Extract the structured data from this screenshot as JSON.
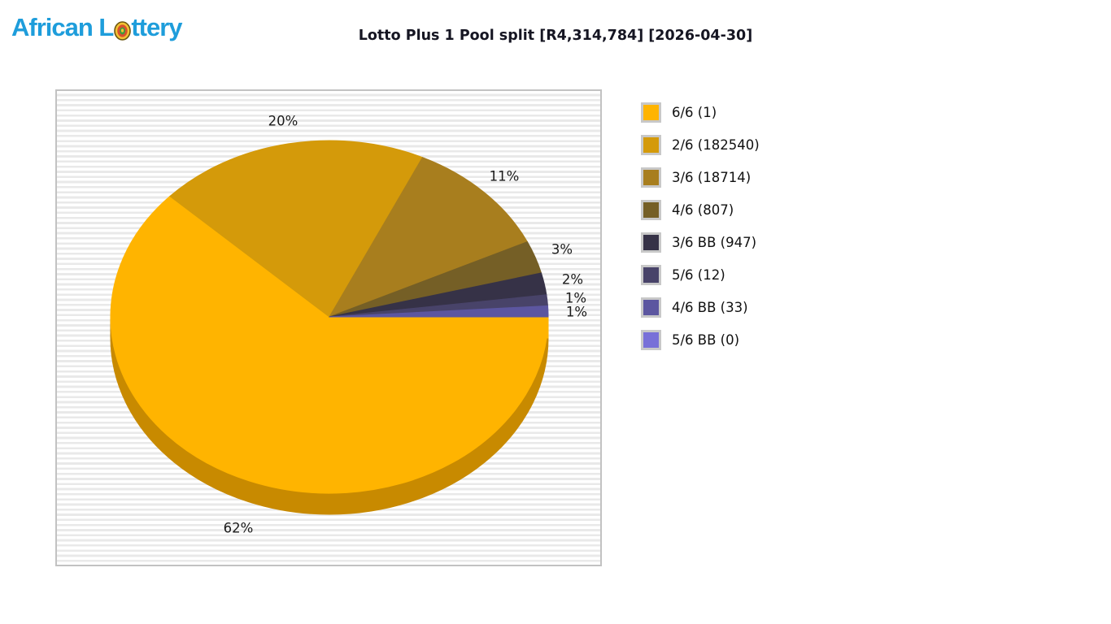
{
  "logo": {
    "text": "African Lottery",
    "text_before_ball": "African L",
    "text_after_ball": "ttery",
    "color": "#1E9DDB",
    "ball_icon": "lottery-ball-icon"
  },
  "header": {
    "title": "Lotto Plus 1 Pool split [R4,314,784] [2026-04-30]"
  },
  "chart_data": {
    "type": "pie",
    "style": "3d",
    "title": "Lotto Plus 1 Pool split [R4,314,784] [2026-04-30]",
    "pool_amount": "R4,314,784",
    "draw_date": "2026-04-30",
    "direction": "clockwise",
    "start_angle_deg": 0,
    "legend_position": "right",
    "labels_show": "percent",
    "depth_side_color": "#C88A00",
    "background_stripe_colors": [
      "#FFFFFF",
      "#E9E9E9"
    ],
    "panel_border_color": "#C2C2C2",
    "slices": [
      {
        "name": "6/6",
        "count": 1,
        "percent": 62,
        "color": "#FFB400",
        "legend_label": "6/6 (1)"
      },
      {
        "name": "2/6",
        "count": 182540,
        "percent": 20,
        "color": "#D49A0A",
        "legend_label": "2/6 (182540)"
      },
      {
        "name": "3/6",
        "count": 18714,
        "percent": 11,
        "color": "#A87E1E",
        "legend_label": "3/6 (18714)"
      },
      {
        "name": "4/6",
        "count": 807,
        "percent": 3,
        "color": "#755F26",
        "legend_label": "4/6 (807)"
      },
      {
        "name": "3/6 BB",
        "count": 947,
        "percent": 2,
        "color": "#363247",
        "legend_label": "3/6 BB (947)"
      },
      {
        "name": "5/6",
        "count": 12,
        "percent": 1,
        "color": "#484369",
        "legend_label": "5/6 (12)"
      },
      {
        "name": "4/6 BB",
        "count": 33,
        "percent": 1,
        "color": "#5C56A0",
        "legend_label": "4/6 BB (33)"
      },
      {
        "name": "5/6 BB",
        "count": 0,
        "percent": 0,
        "color": "#7870D8",
        "legend_label": "5/6 BB (0)"
      }
    ]
  }
}
